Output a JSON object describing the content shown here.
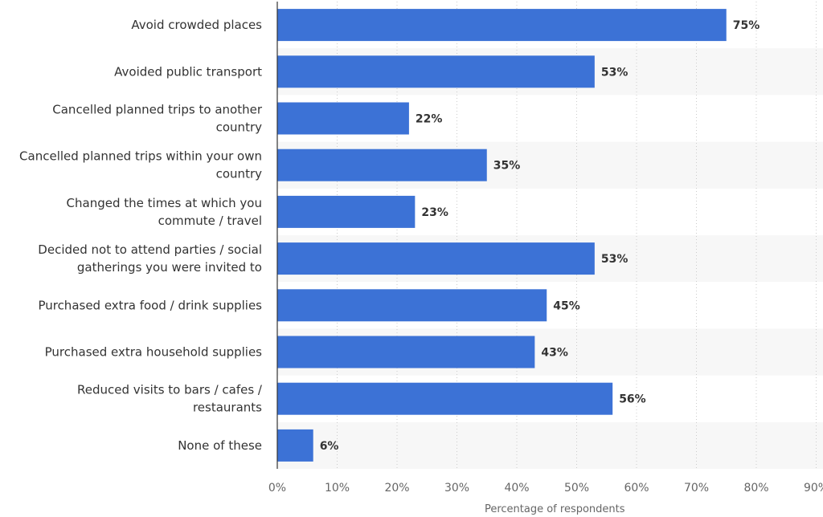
{
  "chart_data": {
    "type": "bar",
    "orientation": "horizontal",
    "categories": [
      [
        "Avoid crowded places"
      ],
      [
        "Avoided public transport"
      ],
      [
        "Cancelled planned trips to another",
        "country"
      ],
      [
        "Cancelled planned trips within your own",
        "country"
      ],
      [
        "Changed the times at which you",
        "commute / travel"
      ],
      [
        "Decided not to attend parties / social",
        "gatherings you were invited to"
      ],
      [
        "Purchased extra food / drink supplies"
      ],
      [
        "Purchased extra household supplies"
      ],
      [
        "Reduced visits to bars / cafes /",
        "restaurants"
      ],
      [
        "None of these"
      ]
    ],
    "values": [
      75,
      53,
      22,
      35,
      23,
      53,
      45,
      43,
      56,
      6
    ],
    "value_labels": [
      "75%",
      "53%",
      "22%",
      "35%",
      "23%",
      "53%",
      "45%",
      "43%",
      "56%",
      "6%"
    ],
    "xlim": [
      0,
      90
    ],
    "xticks": [
      0,
      10,
      20,
      30,
      40,
      50,
      60,
      70,
      80,
      90
    ],
    "xtick_labels": [
      "0%",
      "10%",
      "20%",
      "30%",
      "40%",
      "50%",
      "60%",
      "70%",
      "80%",
      "90%"
    ],
    "xlabel": "Percentage of respondents",
    "ylabel": "",
    "title": "",
    "grid": true,
    "bar_color": "#3c72d6",
    "band_color": "#f7f7f7",
    "grid_color": "#cccccc"
  }
}
